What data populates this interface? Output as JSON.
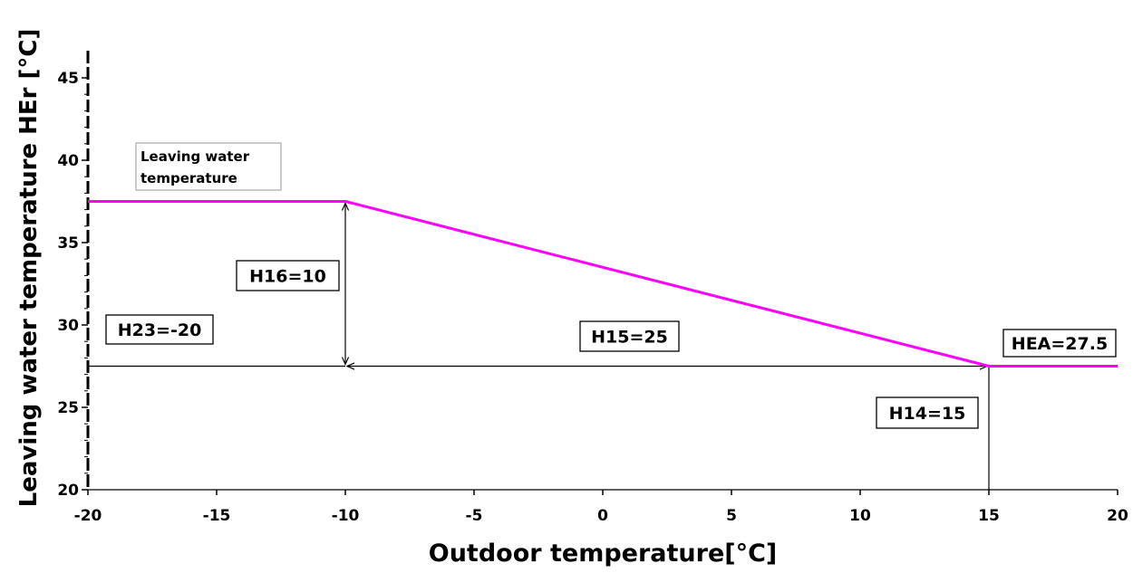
{
  "chart_data": {
    "type": "line",
    "xlabel": "Outdoor temperature[°C]",
    "ylabel": "Leaving water temperature HEr  [°C]",
    "xlim": [
      -20,
      20
    ],
    "ylim": [
      20,
      46
    ],
    "x_ticks": [
      "-20",
      "-15",
      "-10",
      "-5",
      "0",
      "5",
      "10",
      "15",
      "20"
    ],
    "y_ticks": [
      "20",
      "25",
      "30",
      "35",
      "40",
      "45"
    ],
    "grid": false,
    "series": [
      {
        "name": "Leaving water temperature",
        "color": "#ff00ff",
        "x": [
          -20,
          -10,
          15,
          20
        ],
        "y": [
          37.5,
          37.5,
          27.5,
          27.5
        ]
      }
    ],
    "annotations": [
      {
        "id": "h23",
        "text": "H23=-20",
        "x": -20,
        "y": 30.8
      },
      {
        "id": "h16",
        "text": "H16=10",
        "x": -10,
        "y": 34
      },
      {
        "id": "h15",
        "text": "H15=25",
        "x": -3,
        "y": 29
      },
      {
        "id": "h14",
        "text": "H14=15",
        "x": 15,
        "y": 25.5
      },
      {
        "id": "hea",
        "text": "HEA=27.5",
        "x": 17.5,
        "y": 28.2
      }
    ],
    "legend": {
      "text": "Leaving water\ntemperature",
      "lines": [
        "Leaving water",
        "temperature"
      ],
      "placement": "top-left"
    }
  }
}
